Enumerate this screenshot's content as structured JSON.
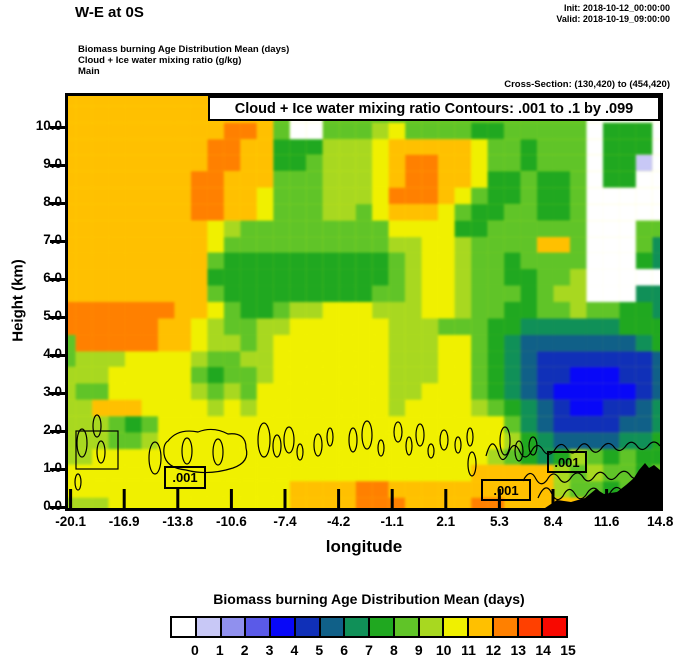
{
  "header": {
    "title": "W-E at 0S",
    "init": "Init: 2018-10-12_00:00:00",
    "valid": "Valid: 2018-10-19_09:00:00",
    "subtitle1": "Biomass burning Age Distribution Mean   (days)",
    "subtitle2": "Cloud + Ice water mixing ratio   (g/kg)",
    "subtitle3": "Main",
    "cross_section": "Cross-Section: (130,420) to (454,420)"
  },
  "plot": {
    "contour_title": "Cloud + Ice water mixing ratio Contours: .001 to .1 by .099",
    "contour_labels": [
      ".001",
      ".001",
      ".001"
    ]
  },
  "axes": {
    "y_title": "Height (km)",
    "y_ticks": [
      "10.0",
      "9.0",
      "8.0",
      "7.0",
      "6.0",
      "5.0",
      "4.0",
      "3.0",
      "2.0",
      "1.0",
      "0.0"
    ],
    "x_title": "longitude",
    "x_ticks": [
      "-20.1",
      "-16.9",
      "-13.8",
      "-10.6",
      "-7.4",
      "-4.2",
      "-1.1",
      "2.1",
      "5.3",
      "8.4",
      "11.6",
      "14.8"
    ]
  },
  "legend": {
    "title": "Biomass burning Age Distribution Mean  (days)",
    "values": [
      "0",
      "1",
      "2",
      "3",
      "4",
      "5",
      "6",
      "7",
      "8",
      "9",
      "10",
      "11",
      "12",
      "13",
      "14",
      "15"
    ]
  },
  "chart_data": {
    "type": "heatmap",
    "title": "Biomass burning Age Distribution Mean (days), W-E cross section at 0S",
    "xlabel": "longitude",
    "ylabel": "Height (km)",
    "x_range": [
      -20.1,
      14.8
    ],
    "y_range_km": [
      0.0,
      10.8
    ],
    "x_tick_values": [
      -20.1,
      -16.9,
      -13.8,
      -10.6,
      -7.4,
      -4.2,
      -1.1,
      2.1,
      5.3,
      8.4,
      11.6,
      14.8
    ],
    "y_tick_values": [
      0,
      1,
      2,
      3,
      4,
      5,
      6,
      7,
      8,
      9,
      10
    ],
    "colorbar_boundaries": [
      0,
      1,
      2,
      3,
      4,
      5,
      6,
      7,
      8,
      9,
      10,
      11,
      12,
      13,
      14,
      15
    ],
    "palette": [
      "#ffffff",
      "#c8c8f6",
      "#9090ee",
      "#5a5ae8",
      "#0808f8",
      "#1030b8",
      "#106088",
      "#109058",
      "#20a820",
      "#60c428",
      "#a8d820",
      "#f0f000",
      "#ffc000",
      "#ff8000",
      "#ff4000",
      "#f80800"
    ],
    "contour_field": "Cloud + Ice water mixing ratio (g/kg), contours .001 to .1 by .099, labels .001 near 1 km over land and 0.5-1.5 km at 5-15 lon",
    "terrain": "black filled orography rising at right edge from lon ~8.5 to 14.8 up to ~1.2 km",
    "grid_note": "16-level age field (hex digit = palette index), 37 columns lon -20.1..14.8, 26 rows height 10.8..0 km top-to-bottom",
    "grid_rows": [
      "ccccccccccccc999999999999999999900000",
      "ccccccccccccc900999999999999999900000",
      "ccccccccccddc900999ab9999889999908880",
      "cccccccccddcc888aaabcccccb99899908880",
      "cccccccccddcc889aaabcddccb99899908810",
      "ccccccccddccc999aaabcddccb88988908800",
      "ccccccccddccb999aaabdddcb988988900000",
      "ccccccccddccb999aa9bcccb9889988900000",
      "cccccccccba999999999bbbb8899999900099",
      "cccccccccb9999999999aabba9999cc900097",
      "ccccccccc988888888889abba998999900087",
      "ccccccccc888888888889abba998899a00000",
      "ccccccccc988888888899abba99989aa00077",
      "dddddddccb9889aabbbaaabba998899a99887",
      "ddddddccba99aabbbbbbaaa99988777777888",
      "9dddddccbaa9abbbbbbbaaabb987666666678",
      "9aaabbbba99aabbbbbbbaaabb987655555556",
      "aaabbbbb9899abbbbbbbaaabb987655444556",
      "a99bbbbba9a9bbbbbbbbaabbb987654444456",
      "aacccbbbbababbbbbbbbabbbba98765445567",
      "aaa989bbbbbbbbbbbbbbbbbbbbb9765555667",
      "aaa99abbbbbbbbbbbbbbbbbbbbba876666778",
      "aabbbbbbbbbbbbbbbbbbbbbbbba9878a98988",
      "bbbbbbbbbbbbbbbbbbbbbbbbbccccca9a9989",
      "bbbbbbbbbbbbbbccccddcccccccccca998999",
      "aaabbbbbbbbbbbccccdddccccddcccccccccc"
    ]
  }
}
